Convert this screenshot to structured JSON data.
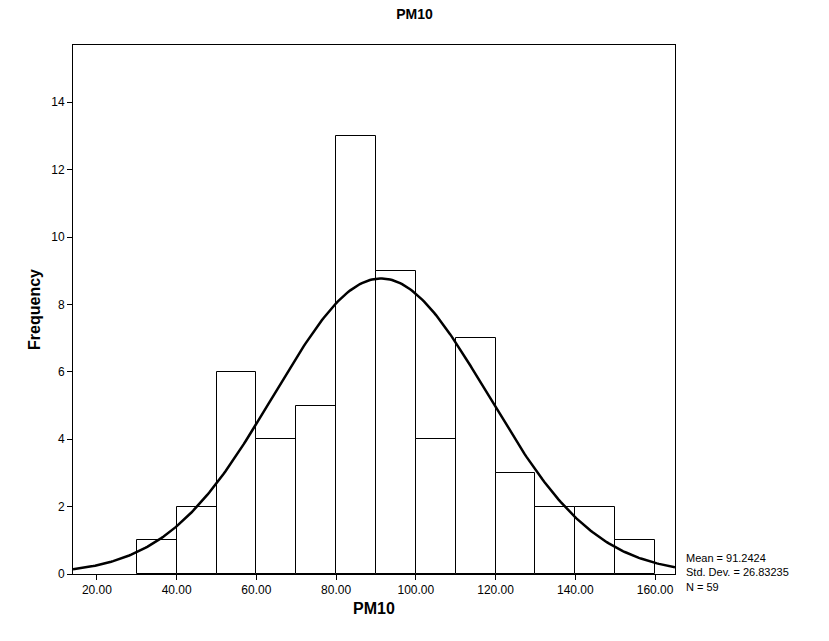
{
  "chart_data": {
    "type": "histogram",
    "title": "PM10",
    "x_label": "PM10",
    "y_label": "Frequency",
    "bins": [
      30,
      40,
      50,
      60,
      70,
      80,
      90,
      100,
      110,
      120,
      130,
      140,
      150,
      160
    ],
    "values": [
      1,
      2,
      6,
      4,
      5,
      13,
      9,
      4,
      7,
      3,
      2,
      2,
      1
    ],
    "color": "#ffffff",
    "curve": {
      "mean": 91.2424,
      "std_dev": 26.83235,
      "n": 59
    },
    "annotations": [
      "Mean = 91.2424",
      "Std. Dev. = 26.83235",
      "N = 59"
    ],
    "xlim": [
      14,
      165
    ],
    "xticks": [
      {
        "value": 20,
        "label": "20.00"
      },
      {
        "value": 40,
        "label": "40.00"
      },
      {
        "value": 60,
        "label": "60.00"
      },
      {
        "value": 80,
        "label": "80.00"
      },
      {
        "value": 100,
        "label": "100.00"
      },
      {
        "value": 120,
        "label": "120.00"
      },
      {
        "value": 140,
        "label": "140.00"
      },
      {
        "value": 160,
        "label": "160.00"
      }
    ],
    "ylim": [
      0,
      15.7
    ],
    "yticks": [
      0,
      2,
      4,
      6,
      8,
      10,
      12,
      14
    ],
    "grid": false
  }
}
